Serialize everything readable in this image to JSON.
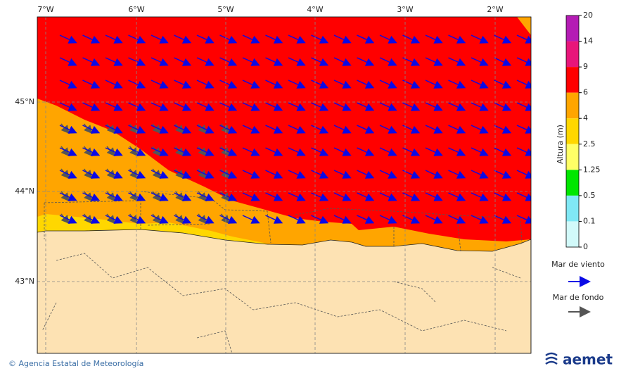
{
  "map": {
    "lon_ticks": [
      "7°W",
      "6°W",
      "5°W",
      "4°W",
      "3°W",
      "2°W"
    ],
    "lat_ticks": [
      "45°N",
      "44°N",
      "43°N"
    ]
  },
  "colorbar": {
    "title": "Altura (m)",
    "ticks": [
      20,
      14,
      9,
      6,
      4,
      2.5,
      1.25,
      0.5,
      0.1,
      0
    ],
    "colors": [
      "#b41cb4",
      "#e8157a",
      "#ff0000",
      "#ffa500",
      "#ffd700",
      "#ffff66",
      "#00e600",
      "#80e8f5",
      "#d2fafa"
    ]
  },
  "legend": [
    {
      "label": "Mar de viento",
      "color": "#0a0ae6"
    },
    {
      "label": "Mar de fondo",
      "color": "#555555"
    }
  ],
  "footer": {
    "credit": "© Agencia Estatal de Meteorología",
    "logo": "aemet"
  }
}
